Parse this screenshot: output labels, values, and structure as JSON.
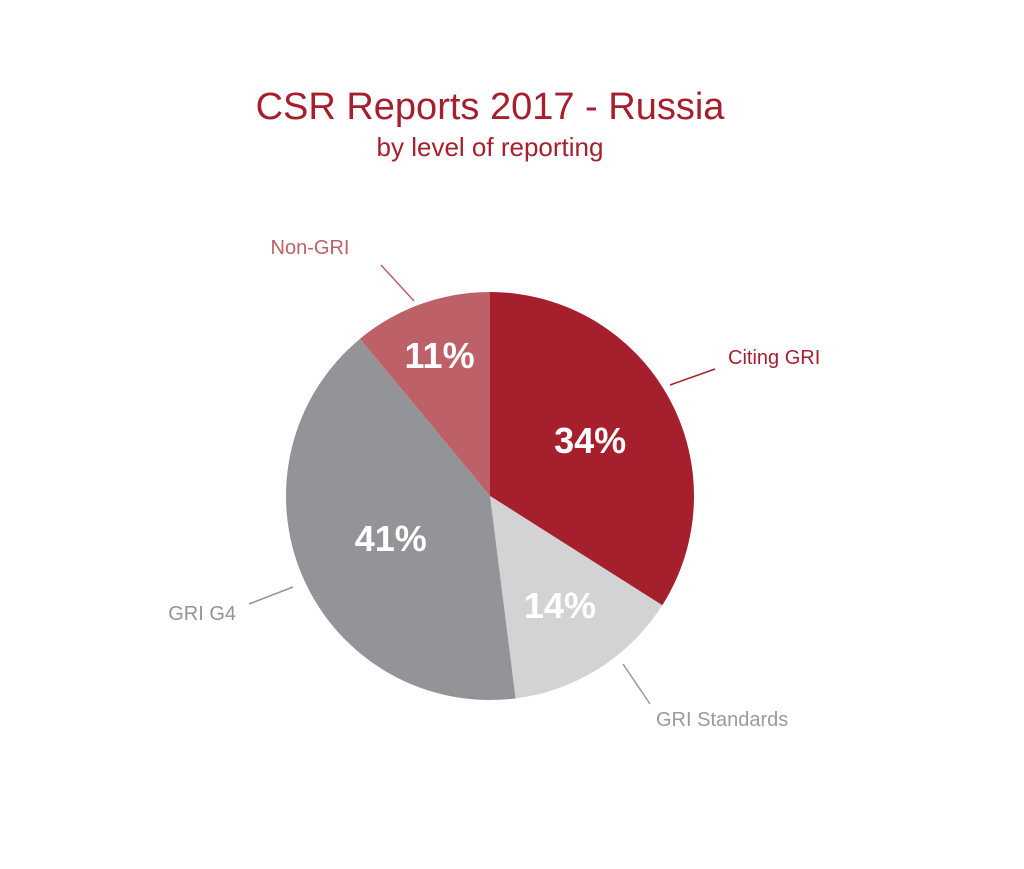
{
  "chart_data": {
    "type": "pie",
    "title": "CSR Reports 2017 - Russia",
    "subtitle": "by level of reporting",
    "slices": [
      {
        "label": "Citing GRI",
        "value": 34,
        "value_label": "34%",
        "color": "#a51f2d",
        "label_color": "#a51f2d"
      },
      {
        "label": "GRI Standards",
        "value": 14,
        "value_label": "14%",
        "color": "#d3d3d5",
        "label_color": "#9a9b9f"
      },
      {
        "label": "GRI G4",
        "value": 41,
        "value_label": "41%",
        "color": "#939498",
        "label_color": "#939498"
      },
      {
        "label": "Non-GRI",
        "value": 11,
        "value_label": "11%",
        "color": "#be6068",
        "label_color": "#be6068"
      }
    ],
    "start_angle": "12 o'clock",
    "direction": "clockwise",
    "legend": "none"
  }
}
